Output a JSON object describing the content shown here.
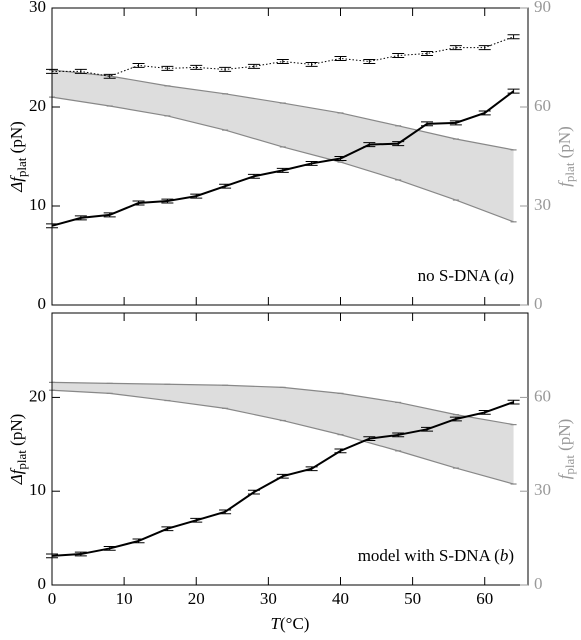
{
  "chart_data": [
    {
      "type": "line",
      "ylabel": [
        "Δf",
        "plat",
        " (pN)"
      ],
      "y2label": [
        "f",
        "plat",
        " (pN)"
      ],
      "annotation": [
        "no S-DNA (",
        "a",
        ")"
      ],
      "xlim": [
        0,
        66
      ],
      "xticks": [
        0,
        10,
        20,
        30,
        40,
        50,
        60
      ],
      "show_xticklabels": false,
      "ylim": [
        0,
        30
      ],
      "yticks": [
        0,
        10,
        20,
        30
      ],
      "y2lim": [
        0,
        90
      ],
      "y2ticks": [
        0,
        30,
        60,
        90
      ],
      "y2color": "#999999",
      "series": [
        {
          "style": "band",
          "axis": "y2",
          "color": "#dddddd",
          "edge": "#888888",
          "x": [
            0,
            8,
            16,
            24,
            32,
            40,
            48,
            56,
            64
          ],
          "upper": [
            71.2,
            69.4,
            66.4,
            64,
            61.2,
            58.2,
            54.3,
            50.3,
            47
          ],
          "lower": [
            63,
            60.3,
            57.3,
            53,
            47.9,
            43.3,
            37.9,
            31.8,
            25.2
          ]
        },
        {
          "style": "dotted",
          "axis": "y2",
          "color": "#000000",
          "x": [
            0,
            4,
            8,
            12,
            16,
            20,
            24,
            28,
            32,
            36,
            40,
            44,
            48,
            52,
            56,
            60,
            64
          ],
          "values": [
            70.8,
            70.8,
            69.3,
            72.6,
            71.7,
            72,
            71.4,
            72.3,
            73.8,
            72.9,
            74.7,
            73.8,
            75.6,
            76.2,
            78,
            78,
            81.3
          ],
          "errors": [
            0.6,
            0.6,
            0.6,
            0.6,
            0.6,
            0.6,
            0.6,
            0.6,
            0.6,
            0.6,
            0.6,
            0.6,
            0.6,
            0.6,
            0.6,
            0.6,
            0.6
          ]
        },
        {
          "style": "solid",
          "axis": "y",
          "color": "#000000",
          "x": [
            0,
            4,
            8,
            12,
            16,
            20,
            24,
            28,
            32,
            36,
            40,
            44,
            48,
            52,
            56,
            60,
            64
          ],
          "values": [
            8,
            8.8,
            9.1,
            10.3,
            10.5,
            11,
            12,
            13,
            13.6,
            14.3,
            14.8,
            16.2,
            16.3,
            18.3,
            18.4,
            19.4,
            21.6
          ],
          "errors": [
            0.2,
            0.2,
            0.2,
            0.2,
            0.2,
            0.2,
            0.2,
            0.2,
            0.2,
            0.2,
            0.2,
            0.2,
            0.2,
            0.2,
            0.2,
            0.2,
            0.2
          ]
        }
      ]
    },
    {
      "type": "line",
      "ylabel": [
        "Δf",
        "plat",
        " (pN)"
      ],
      "y2label": [
        "f",
        "plat",
        " (pN)"
      ],
      "xlabel": [
        "T",
        "(°C)"
      ],
      "annotation": [
        "model with S-DNA (",
        "b",
        ")"
      ],
      "xlim": [
        0,
        66
      ],
      "xticks": [
        0,
        10,
        20,
        30,
        40,
        50,
        60
      ],
      "show_xticklabels": true,
      "ylim": [
        0,
        29
      ],
      "yticks": [
        0,
        10,
        20
      ],
      "y2lim": [
        0,
        87
      ],
      "y2ticks": [
        0,
        30,
        60
      ],
      "y2color": "#999999",
      "series": [
        {
          "style": "band",
          "axis": "y2",
          "color": "#dddddd",
          "edge": "#888888",
          "x": [
            0,
            8,
            16,
            24,
            32,
            40,
            48,
            56,
            64
          ],
          "upper": [
            64.8,
            64.5,
            64.2,
            63.9,
            63.2,
            61.3,
            58.4,
            54.5,
            51.3
          ],
          "lower": [
            62.3,
            61.3,
            59,
            56.5,
            52.6,
            48.1,
            42.9,
            37.4,
            32.3
          ]
        },
        {
          "style": "solid",
          "axis": "y",
          "color": "#000000",
          "x": [
            0,
            4,
            8,
            12,
            16,
            20,
            24,
            28,
            32,
            36,
            40,
            44,
            48,
            52,
            56,
            60,
            64
          ],
          "values": [
            3.1,
            3.3,
            3.9,
            4.7,
            6,
            6.9,
            7.8,
            9.9,
            11.6,
            12.4,
            14.3,
            15.6,
            16,
            16.6,
            17.7,
            18.4,
            19.5
          ],
          "errors": [
            0.2,
            0.2,
            0.2,
            0.2,
            0.2,
            0.2,
            0.2,
            0.2,
            0.2,
            0.2,
            0.2,
            0.2,
            0.2,
            0.2,
            0.2,
            0.2,
            0.2
          ]
        }
      ]
    }
  ]
}
